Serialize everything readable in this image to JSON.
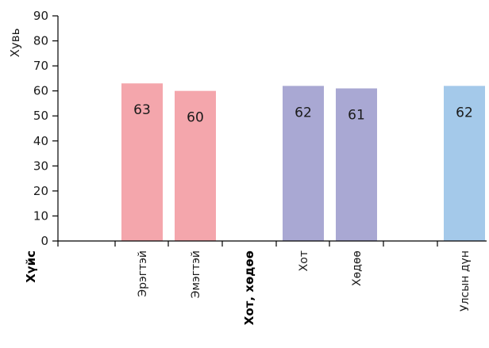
{
  "chart_data": {
    "type": "bar",
    "title": "",
    "xlabel": "",
    "ylabel": "Хувь",
    "ylim": [
      0,
      90
    ],
    "yticks": [
      0,
      10,
      20,
      30,
      40,
      50,
      60,
      70,
      80,
      90
    ],
    "grid": false,
    "categories": [
      "Хүйс",
      "Эрэгтэй",
      "Эмэгтэй",
      "Хот, хөдөө",
      "Хот",
      "Хөдөө",
      "",
      "Улсын дүн"
    ],
    "bold_categories": [
      "Хүйс",
      "Хот, хөдөө"
    ],
    "values": [
      null,
      63,
      60,
      null,
      62,
      61,
      null,
      62
    ],
    "bar_colors": [
      null,
      "#f4a6ac",
      "#f4a6ac",
      null,
      "#a9a8d3",
      "#a9a8d3",
      null,
      "#a4c9ea"
    ],
    "value_labels": [
      "",
      "63",
      "60",
      "",
      "62",
      "61",
      "",
      "62"
    ]
  }
}
